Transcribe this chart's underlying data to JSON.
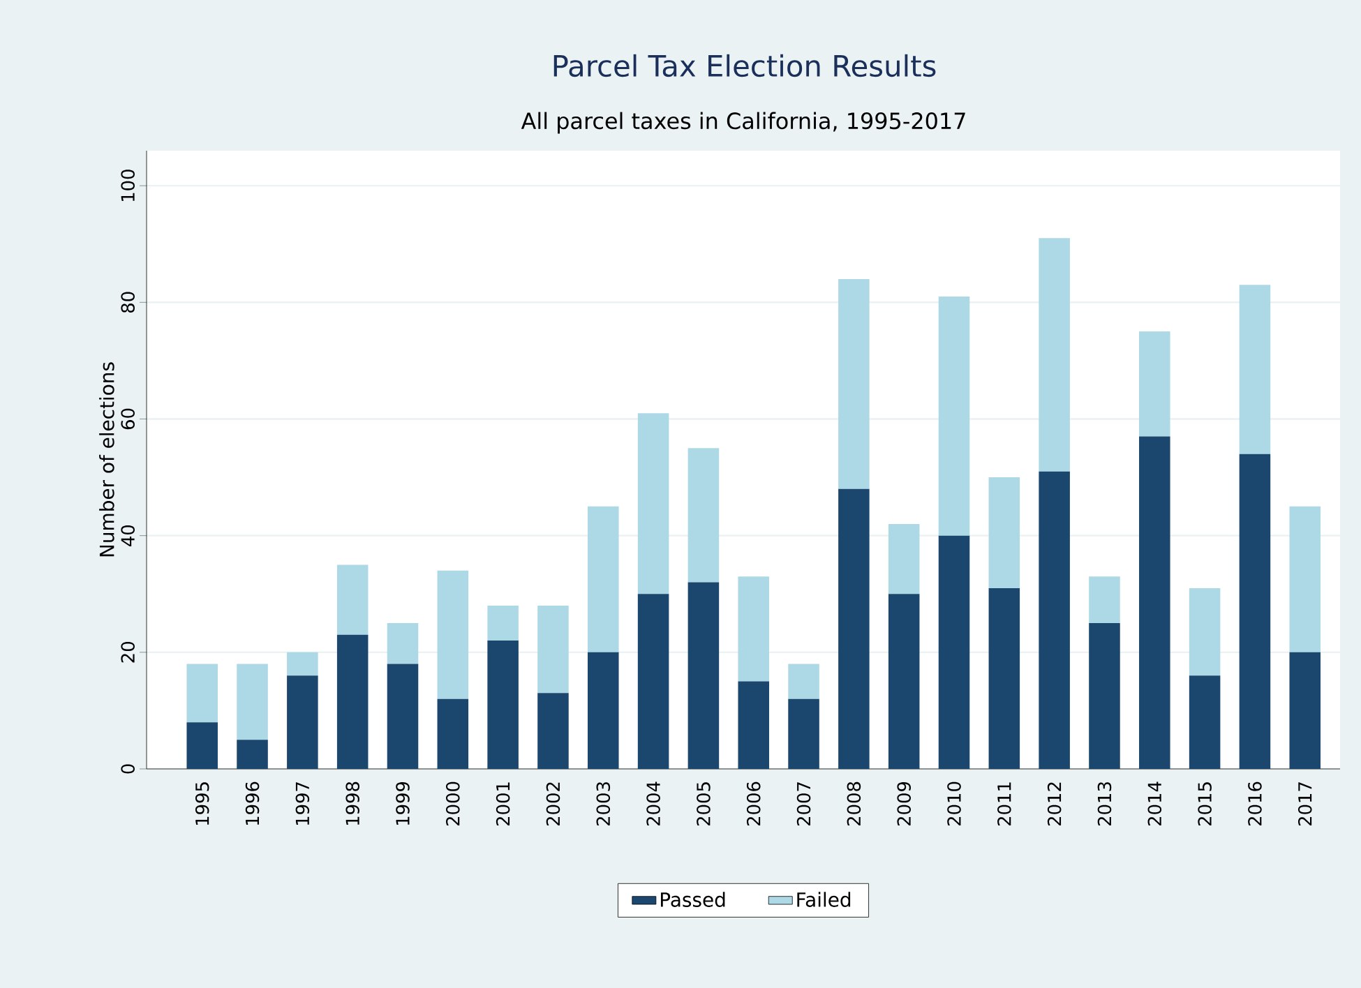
{
  "chart_data": {
    "type": "bar",
    "title": "Parcel Tax Election Results",
    "subtitle": "All parcel taxes in California, 1995-2017",
    "ylabel": "Number of elections",
    "categories": [
      "1995",
      "1996",
      "1997",
      "1998",
      "1999",
      "2000",
      "2001",
      "2002",
      "2003",
      "2004",
      "2005",
      "2006",
      "2007",
      "2008",
      "2009",
      "2010",
      "2011",
      "2012",
      "2013",
      "2014",
      "2015",
      "2016",
      "2017"
    ],
    "stacked": true,
    "series": [
      {
        "name": "Passed",
        "color": "#1b466e",
        "values": [
          8,
          5,
          16,
          23,
          18,
          12,
          22,
          13,
          20,
          30,
          32,
          15,
          12,
          48,
          30,
          40,
          31,
          51,
          25,
          57,
          16,
          54,
          20
        ]
      },
      {
        "name": "Failed",
        "color": "#add8e6",
        "values": [
          10,
          13,
          4,
          12,
          7,
          22,
          6,
          15,
          25,
          31,
          23,
          18,
          6,
          36,
          12,
          41,
          19,
          40,
          8,
          18,
          15,
          29,
          25
        ]
      }
    ],
    "ylim": [
      0,
      106
    ],
    "yticks": [
      0,
      20,
      40,
      60,
      80,
      100
    ],
    "grid": "y",
    "legend": "bottom"
  }
}
